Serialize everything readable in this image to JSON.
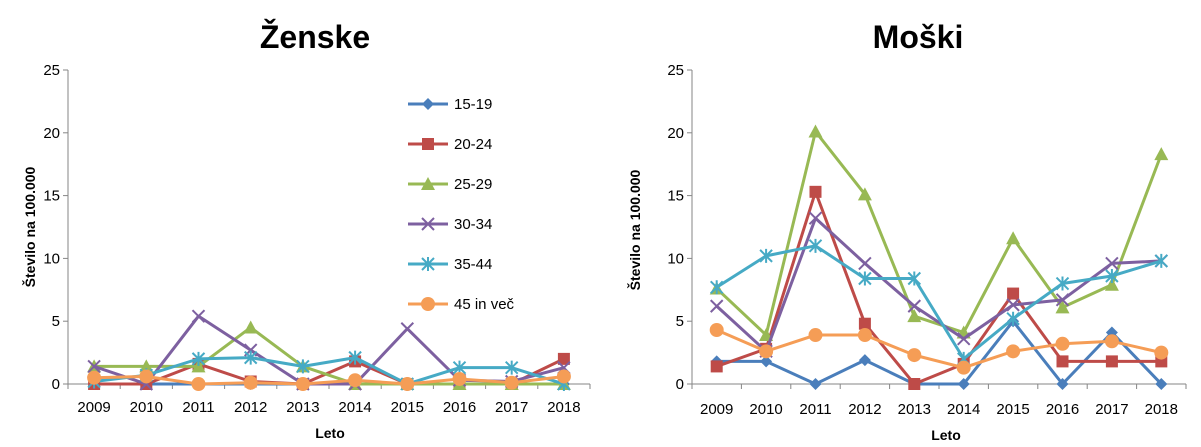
{
  "chart_data": [
    {
      "type": "line",
      "title": "Ženske",
      "xlabel": "Leto",
      "ylabel": "Število na 100.000",
      "ylim": [
        0,
        25
      ],
      "yticks": [
        0,
        5,
        10,
        15,
        20,
        25
      ],
      "categories": [
        "2009",
        "2010",
        "2011",
        "2012",
        "2013",
        "2014",
        "2015",
        "2016",
        "2017",
        "2018"
      ],
      "legend": "right-inside",
      "grid": false,
      "series": [
        {
          "name": "15-19",
          "color": "#4a7ebb",
          "marker": "diamond",
          "values": [
            0,
            0,
            0,
            0,
            0,
            0,
            0,
            0,
            0,
            0
          ]
        },
        {
          "name": "20-24",
          "color": "#be4b48",
          "marker": "square",
          "values": [
            0,
            0,
            1.6,
            0.2,
            0,
            1.8,
            0,
            0,
            0,
            2.0
          ]
        },
        {
          "name": "25-29",
          "color": "#98b954",
          "marker": "triangle",
          "values": [
            1.4,
            1.4,
            1.4,
            4.5,
            1.4,
            0,
            0,
            0,
            0,
            0
          ]
        },
        {
          "name": "30-34",
          "color": "#7d60a0",
          "marker": "x",
          "values": [
            1.4,
            0,
            5.4,
            2.7,
            0,
            0,
            4.4,
            0.3,
            0.2,
            1.3
          ]
        },
        {
          "name": "35-44",
          "color": "#46aac5",
          "marker": "star",
          "values": [
            0.2,
            0.7,
            2.0,
            2.1,
            1.4,
            2.1,
            0,
            1.3,
            1.3,
            0
          ]
        },
        {
          "name": "45 in več",
          "color": "#f59d56",
          "marker": "circle",
          "values": [
            0.5,
            0.6,
            0,
            0.1,
            0,
            0.3,
            0,
            0.4,
            0.1,
            0.6
          ]
        }
      ]
    },
    {
      "type": "line",
      "title": "Moški",
      "xlabel": "Leto",
      "ylabel": "Število na 100.000",
      "ylim": [
        0,
        25
      ],
      "yticks": [
        0,
        5,
        10,
        15,
        20,
        25
      ],
      "categories": [
        "2009",
        "2010",
        "2011",
        "2012",
        "2013",
        "2014",
        "2015",
        "2016",
        "2017",
        "2018"
      ],
      "grid": false,
      "series": [
        {
          "name": "15-19",
          "color": "#4a7ebb",
          "marker": "diamond",
          "values": [
            1.8,
            1.8,
            0,
            1.9,
            0,
            0,
            5.0,
            0,
            4.1,
            0
          ]
        },
        {
          "name": "20-24",
          "color": "#be4b48",
          "marker": "square",
          "values": [
            1.4,
            2.8,
            15.3,
            4.8,
            0,
            1.6,
            7.2,
            1.8,
            1.8,
            1.8
          ]
        },
        {
          "name": "25-29",
          "color": "#98b954",
          "marker": "triangle",
          "values": [
            7.6,
            3.9,
            20.1,
            15.1,
            5.4,
            4.1,
            11.6,
            6.1,
            7.9,
            18.3
          ]
        },
        {
          "name": "30-34",
          "color": "#7d60a0",
          "marker": "x",
          "values": [
            6.2,
            2.6,
            13.2,
            9.6,
            6.2,
            3.6,
            6.3,
            6.7,
            9.6,
            9.8
          ]
        },
        {
          "name": "35-44",
          "color": "#46aac5",
          "marker": "star",
          "values": [
            7.7,
            10.2,
            11.0,
            8.4,
            8.4,
            2.0,
            5.2,
            8.0,
            8.6,
            9.8
          ]
        },
        {
          "name": "45 in več",
          "color": "#f59d56",
          "marker": "circle",
          "values": [
            4.3,
            2.6,
            3.9,
            3.9,
            2.3,
            1.3,
            2.6,
            3.2,
            3.4,
            2.5
          ]
        }
      ]
    }
  ]
}
